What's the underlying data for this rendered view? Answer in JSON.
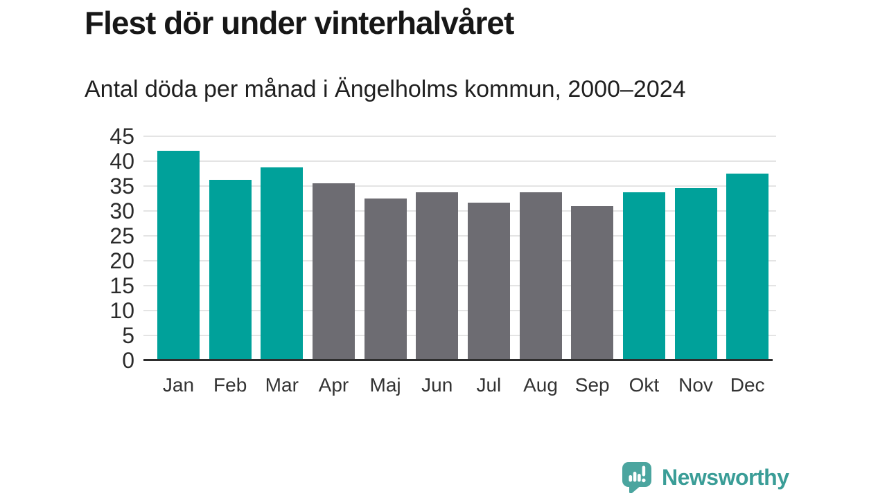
{
  "header": {
    "title": "Flest dör under vinterhalvåret",
    "subtitle": "Antal döda per månad i Ängelholms kommun, 2000–2024"
  },
  "chart_data": {
    "type": "bar",
    "title": "Flest dör under vinterhalvåret",
    "subtitle": "Antal döda per månad i Ängelholms kommun, 2000–2024",
    "categories": [
      "Jan",
      "Feb",
      "Mar",
      "Apr",
      "Maj",
      "Jun",
      "Jul",
      "Aug",
      "Sep",
      "Okt",
      "Nov",
      "Dec"
    ],
    "values": [
      42.1,
      36.2,
      38.7,
      35.6,
      32.5,
      33.8,
      31.7,
      33.8,
      31.0,
      33.8,
      34.6,
      37.5
    ],
    "groups": [
      "winter",
      "winter",
      "winter",
      "summer",
      "summer",
      "summer",
      "summer",
      "summer",
      "summer",
      "winter",
      "winter",
      "winter"
    ],
    "group_colors": {
      "winter": "#00a19a",
      "summer": "#6d6c72"
    },
    "xlabel": "",
    "ylabel": "",
    "ylim": [
      0,
      45
    ],
    "yticks": [
      0,
      5,
      10,
      15,
      20,
      25,
      30,
      35,
      40,
      45
    ],
    "grid": "horizontal",
    "legend": "none",
    "annotation": "Winter half-year months (Jan–Mar, Okt–Dec) highlighted teal; Apr–Sep gray"
  },
  "style_colors": {
    "bar_teal": "#00a19a",
    "bar_gray": "#6d6c72",
    "gridline": "#e4e4e4",
    "axis_line": "#2d2d2d",
    "brand_teal": "#3a9d97"
  },
  "branding": {
    "logo_text": "Newsworthy",
    "logo_icon": "newsworthy-speech-bubble-bar-chart-icon"
  }
}
